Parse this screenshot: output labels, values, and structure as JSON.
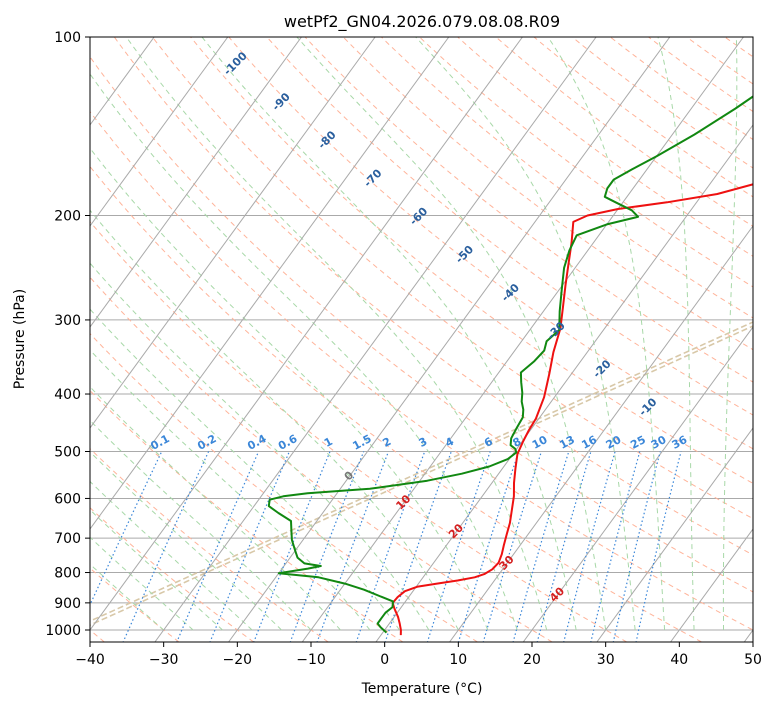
{
  "chart_data": {
    "type": "line",
    "chart_kind": "skew-T log-P diagram",
    "title": "wetPf2_GN04.2026.079.08.08.R09",
    "xlabel": "Temperature (°C)",
    "ylabel": "Pressure (hPa)",
    "xlim": [
      -40,
      50
    ],
    "ylim": [
      1050,
      100
    ],
    "y_scale": "log",
    "grid": true,
    "x_ticks": [
      "−40",
      "−30",
      "−20",
      "−10",
      "0",
      "10",
      "20",
      "30",
      "40",
      "50"
    ],
    "y_ticks": [
      {
        "value": 100,
        "label": "100"
      },
      {
        "value": 200,
        "label": "200"
      },
      {
        "value": 300,
        "label": "300"
      },
      {
        "value": 400,
        "label": "400"
      },
      {
        "value": 500,
        "label": "500"
      },
      {
        "value": 600,
        "label": "600"
      },
      {
        "value": 700,
        "label": "700"
      },
      {
        "value": 800,
        "label": "800"
      },
      {
        "value": 900,
        "label": "900"
      },
      {
        "value": 1000,
        "label": "1000"
      }
    ],
    "colors": {
      "temperature": "#ee1111",
      "dewpoint": "#118811",
      "isotherm": "#aaaaaa",
      "dry_adiabat": "#ffb49a",
      "moist_adiabat": "#a8d8a8",
      "mixing_ratio": "#3a86d8",
      "wetbulb_label": "#2a5f9e",
      "frost_line": "#d8c8a8",
      "isotherm_label_warm": "#d42020",
      "isotherm_label_zero": "#777777"
    },
    "series": [
      {
        "color": "#ee1111",
        "points": [
          [
            2.7,
            1020
          ],
          [
            2.2,
            1000
          ],
          [
            1.4,
            975
          ],
          [
            0.5,
            950
          ],
          [
            -0.8,
            920
          ],
          [
            -1.6,
            900
          ],
          [
            -1.5,
            880
          ],
          [
            -1.1,
            860
          ],
          [
            0.2,
            845
          ],
          [
            2.5,
            835
          ],
          [
            5.0,
            825
          ],
          [
            7.0,
            815
          ],
          [
            8.0,
            805
          ],
          [
            8.6,
            790
          ],
          [
            8.8,
            770
          ],
          [
            8.4,
            745
          ],
          [
            7.8,
            720
          ],
          [
            7.1,
            690
          ],
          [
            6.4,
            660
          ],
          [
            5.3,
            625
          ],
          [
            4.3,
            595
          ],
          [
            3.0,
            565
          ],
          [
            1.8,
            535
          ],
          [
            0.6,
            505
          ],
          [
            0.1,
            480
          ],
          [
            -0.2,
            460
          ],
          [
            -0.4,
            440
          ],
          [
            -1.4,
            405
          ],
          [
            -3.0,
            370
          ],
          [
            -4.6,
            340
          ],
          [
            -6.0,
            310
          ],
          [
            -7.8,
            285
          ],
          [
            -9.6,
            262
          ],
          [
            -11.4,
            240
          ],
          [
            -13.0,
            222
          ],
          [
            -14.8,
            205
          ],
          [
            -13.5,
            200
          ],
          [
            -10.0,
            195
          ],
          [
            -4.0,
            190
          ],
          [
            2.0,
            184
          ],
          [
            6.0,
            177
          ],
          [
            8.0,
            170
          ],
          [
            9.5,
            162
          ],
          [
            11.0,
            155
          ],
          [
            14.2,
            147
          ],
          [
            17.0,
            139
          ],
          [
            17.6,
            134
          ],
          [
            18.0,
            130
          ],
          [
            18.6,
            126
          ],
          [
            19.6,
            122
          ],
          [
            21.5,
            117
          ],
          [
            23.2,
            112
          ],
          [
            25.8,
            107
          ],
          [
            27.6,
            103
          ],
          [
            29.0,
            100
          ]
        ]
      },
      {
        "color": "#118811",
        "points": [
          [
            0.5,
            1010
          ],
          [
            -0.8,
            990
          ],
          [
            -1.6,
            975
          ],
          [
            -1.6,
            955
          ],
          [
            -1.6,
            935
          ],
          [
            -1.2,
            915
          ],
          [
            -1.7,
            895
          ],
          [
            -3.6,
            880
          ],
          [
            -6.8,
            855
          ],
          [
            -10.0,
            835
          ],
          [
            -14.2,
            815
          ],
          [
            -20.0,
            802
          ],
          [
            -16.5,
            788
          ],
          [
            -15.0,
            780
          ],
          [
            -17.5,
            772
          ],
          [
            -19.0,
            755
          ],
          [
            -20.0,
            735
          ],
          [
            -21.5,
            705
          ],
          [
            -22.5,
            680
          ],
          [
            -23.5,
            655
          ],
          [
            -26.0,
            635
          ],
          [
            -28.0,
            618
          ],
          [
            -28.5,
            603
          ],
          [
            -27.0,
            595
          ],
          [
            -24.0,
            588
          ],
          [
            -16.0,
            578
          ],
          [
            -9.0,
            560
          ],
          [
            -5.0,
            545
          ],
          [
            -2.0,
            530
          ],
          [
            -0.2,
            515
          ],
          [
            0.3,
            502
          ],
          [
            -0.2,
            495
          ],
          [
            -1.2,
            488
          ],
          [
            -1.8,
            475
          ],
          [
            -2.1,
            455
          ],
          [
            -2.3,
            438
          ],
          [
            -3.0,
            425
          ],
          [
            -4.0,
            412
          ],
          [
            -4.8,
            398
          ],
          [
            -6.0,
            382
          ],
          [
            -7.0,
            368
          ],
          [
            -6.3,
            352
          ],
          [
            -6.0,
            338
          ],
          [
            -6.6,
            326
          ],
          [
            -6.0,
            312
          ],
          [
            -7.8,
            290
          ],
          [
            -9.8,
            265
          ],
          [
            -11.5,
            245
          ],
          [
            -12.5,
            229
          ],
          [
            -13.0,
            216
          ],
          [
            -10.0,
            207
          ],
          [
            -6.5,
            201
          ],
          [
            -8.0,
            196
          ],
          [
            -11.0,
            190
          ],
          [
            -13.0,
            186
          ],
          [
            -13.5,
            180
          ],
          [
            -13.5,
            174
          ],
          [
            -12.0,
            167
          ],
          [
            -10.0,
            159
          ],
          [
            -7.0,
            146
          ],
          [
            -4.0,
            132
          ],
          [
            -2.0,
            122
          ],
          [
            0.0,
            111
          ],
          [
            2.0,
            104
          ],
          [
            3.0,
            100
          ]
        ]
      }
    ],
    "wetbulb_labels": [
      "-100",
      "-90",
      "-80",
      "-70",
      "-60",
      "-50",
      "-40",
      "-30",
      "-20",
      "-10"
    ],
    "mixing_ratio_labels": [
      "0.1",
      "0.2",
      "0.4",
      "0.6",
      "1",
      "1.5",
      "2",
      "3",
      "4",
      "6",
      "8",
      "10",
      "13",
      "16",
      "20",
      "25",
      "30",
      "36"
    ],
    "isotherm_labels": [
      "0",
      "10",
      "20",
      "30",
      "40"
    ]
  }
}
